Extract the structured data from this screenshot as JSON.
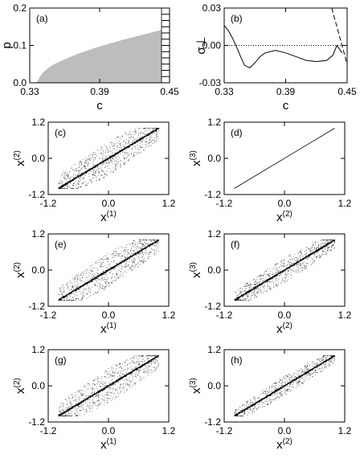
{
  "chart_data": [
    {
      "panel": "(a)",
      "type": "area",
      "xlabel": "c",
      "ylabel": "p",
      "xlim": [
        0.33,
        0.45
      ],
      "ylim": [
        0.0,
        0.2
      ],
      "xticks": [
        "0.33",
        "0.39",
        "0.45"
      ],
      "yticks": [
        "0.0",
        "0.1",
        "0.2"
      ],
      "fill_color": "#bdbdbd",
      "x": [
        0.336,
        0.338,
        0.341,
        0.345,
        0.35,
        0.36,
        0.37,
        0.38,
        0.39,
        0.4,
        0.41,
        0.42,
        0.43,
        0.44,
        0.445
      ],
      "y": [
        0.0,
        0.012,
        0.026,
        0.038,
        0.048,
        0.063,
        0.076,
        0.087,
        0.097,
        0.106,
        0.115,
        0.123,
        0.131,
        0.139,
        0.143
      ]
    },
    {
      "panel": "(b)",
      "type": "line",
      "xlabel": "c",
      "ylabel": "σ⊥",
      "xlim": [
        0.33,
        0.45
      ],
      "ylim": [
        -0.03,
        0.03
      ],
      "xticks": [
        "0.33",
        "0.39",
        "0.45"
      ],
      "yticks": [
        "-0.03",
        "0.00",
        "0.03"
      ],
      "series": [
        {
          "style": "solid",
          "x": [
            0.33,
            0.334,
            0.338,
            0.342,
            0.346,
            0.35,
            0.355,
            0.36,
            0.365,
            0.37,
            0.38,
            0.39,
            0.4,
            0.41,
            0.42,
            0.43,
            0.436,
            0.44,
            0.445
          ],
          "y": [
            0.016,
            0.012,
            0.006,
            -0.001,
            -0.009,
            -0.016,
            -0.018,
            -0.014,
            -0.009,
            -0.006,
            -0.004,
            -0.006,
            -0.009,
            -0.012,
            -0.013,
            -0.012,
            -0.008,
            0.0,
            -0.006
          ]
        },
        {
          "style": "dashed",
          "x": [
            0.435,
            0.45
          ],
          "y": [
            0.03,
            -0.015
          ]
        },
        {
          "style": "dotted",
          "x": [
            0.33,
            0.45
          ],
          "y": [
            0.0,
            0.0
          ]
        }
      ]
    },
    {
      "panel": "(c)",
      "type": "scatter",
      "xlabel": "x(1)",
      "ylabel": "x(2)",
      "xlim": [
        -1.2,
        1.2
      ],
      "ylim": [
        -1.2,
        1.2
      ],
      "xticks": [
        "-1.2",
        "0.0",
        "1.2"
      ],
      "yticks": [
        "-1.2",
        "0.0",
        "1.2"
      ],
      "points": 1400,
      "range": [
        -1.0,
        1.0
      ],
      "spread": 0.58,
      "diagonal": true
    },
    {
      "panel": "(d)",
      "type": "line",
      "xlabel": "x(2)",
      "ylabel": "x(3)",
      "xlim": [
        -1.2,
        1.2
      ],
      "ylim": [
        -1.2,
        1.2
      ],
      "xticks": [
        "-1.2",
        "0.0",
        "1.2"
      ],
      "yticks": [
        "-1.2",
        "0.0",
        "1.2"
      ],
      "x": [
        -1.0,
        1.0
      ],
      "y": [
        -1.0,
        1.0
      ]
    },
    {
      "panel": "(e)",
      "type": "scatter",
      "xlabel": "x(1)",
      "ylabel": "x(2)",
      "xlim": [
        -1.2,
        1.2
      ],
      "ylim": [
        -1.2,
        1.2
      ],
      "xticks": [
        "-1.2",
        "0.0",
        "1.2"
      ],
      "yticks": [
        "-1.2",
        "0.0",
        "1.2"
      ],
      "points": 1400,
      "range": [
        -1.0,
        1.0
      ],
      "spread": 0.58,
      "diagonal": true
    },
    {
      "panel": "(f)",
      "type": "scatter",
      "xlabel": "x(2)",
      "ylabel": "x(3)",
      "xlim": [
        -1.2,
        1.2
      ],
      "ylim": [
        -1.2,
        1.2
      ],
      "xticks": [
        "-1.2",
        "0.0",
        "1.2"
      ],
      "yticks": [
        "-1.2",
        "0.0",
        "1.2"
      ],
      "points": 1300,
      "range": [
        -1.0,
        1.0
      ],
      "spread": 0.42,
      "diagonal": true
    },
    {
      "panel": "(g)",
      "type": "scatter",
      "xlabel": "x(1)",
      "ylabel": "x(2)",
      "xlim": [
        -1.2,
        1.2
      ],
      "ylim": [
        -1.2,
        1.2
      ],
      "xticks": [
        "-1.2",
        "0.0",
        "1.2"
      ],
      "yticks": [
        "-1.2",
        "0.0",
        "1.2"
      ],
      "points": 1400,
      "range": [
        -1.0,
        1.0
      ],
      "spread": 0.58,
      "diagonal": true
    },
    {
      "panel": "(h)",
      "type": "scatter",
      "xlabel": "x(2)",
      "ylabel": "x(3)",
      "xlim": [
        -1.2,
        1.2
      ],
      "ylim": [
        -1.2,
        1.2
      ],
      "xticks": [
        "-1.2",
        "0.0",
        "1.2"
      ],
      "yticks": [
        "-1.2",
        "0.0",
        "1.2"
      ],
      "points": 1100,
      "range": [
        -1.0,
        1.0
      ],
      "spread": 0.32,
      "diagonal": true
    }
  ]
}
